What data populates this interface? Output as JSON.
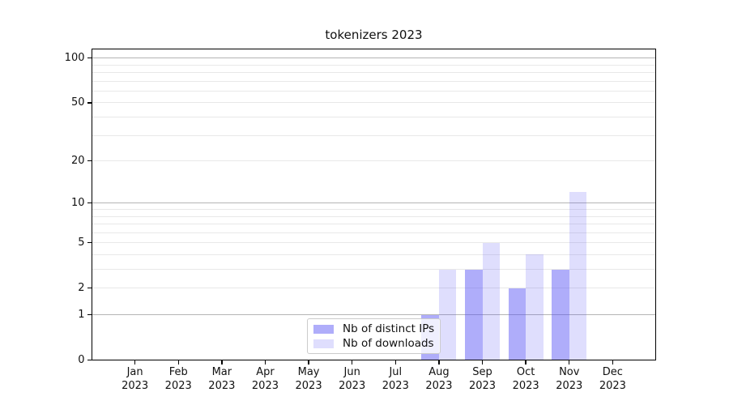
{
  "chart_data": {
    "type": "bar",
    "title": "tokenizers 2023",
    "categories": [
      "Jan 2023",
      "Feb 2023",
      "Mar 2023",
      "Apr 2023",
      "May 2023",
      "Jun 2023",
      "Jul 2023",
      "Aug 2023",
      "Sep 2023",
      "Oct 2023",
      "Nov 2023",
      "Dec 2023"
    ],
    "series": [
      {
        "name": "Nb of distinct IPs",
        "color": "rgba(86,81,245,0.47)",
        "values": [
          0,
          0,
          0,
          0,
          0,
          0,
          0,
          1,
          3,
          2,
          3,
          0
        ]
      },
      {
        "name": "Nb of downloads",
        "color": "rgba(86,81,245,0.19)",
        "values": [
          0,
          0,
          0,
          0,
          0,
          0,
          0,
          3,
          5,
          4,
          12,
          0
        ]
      }
    ],
    "yscale": "log1p",
    "ylim": [
      0,
      115
    ],
    "yticks": [
      0,
      1,
      2,
      5,
      10,
      20,
      50,
      100
    ],
    "major_gridlines": [
      1,
      10,
      100
    ],
    "minor_gridlines": [
      2,
      3,
      4,
      5,
      6,
      7,
      8,
      9,
      20,
      30,
      40,
      50,
      60,
      70,
      80,
      90
    ],
    "grid": "on",
    "legend_position": "inside lower center",
    "colors": {
      "bar_distinct_ips": "rgba(86,81,245,0.47)",
      "bar_downloads": "rgba(86,81,245,0.19)",
      "major_grid": "#b4b4b4",
      "minor_grid": "#e8e8e8",
      "axis": "#000000"
    }
  }
}
